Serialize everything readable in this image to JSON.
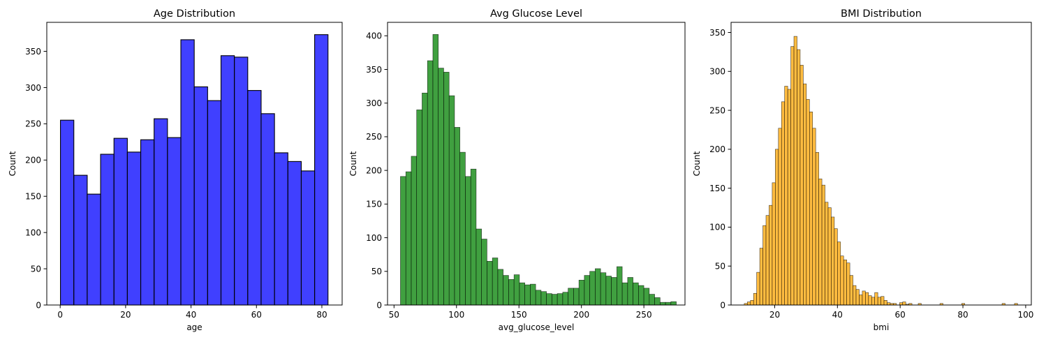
{
  "chart_data": [
    {
      "type": "histogram",
      "title": "Age Distribution",
      "xlabel": "age",
      "ylabel": "Count",
      "color": "#0000ff",
      "xlim": [
        -4.1,
        86.2
      ],
      "ylim": [
        0,
        390
      ],
      "xticks": [
        0,
        20,
        40,
        60,
        80
      ],
      "yticks": [
        0,
        50,
        100,
        150,
        200,
        250,
        300,
        350
      ],
      "bin_start": 0.08,
      "bin_width": 4.09,
      "values": [
        255,
        179,
        153,
        208,
        230,
        211,
        228,
        257,
        231,
        366,
        301,
        282,
        344,
        342,
        296,
        264,
        210,
        198,
        185,
        373
      ]
    },
    {
      "type": "histogram",
      "title": "Avg Glucose Level",
      "xlabel": "avg_glucose_level",
      "ylabel": "Count",
      "color": "#008000",
      "xlim": [
        44.8,
        282.9
      ],
      "ylim": [
        0,
        420
      ],
      "xticks": [
        50,
        100,
        150,
        200,
        250
      ],
      "yticks": [
        0,
        50,
        100,
        150,
        200,
        250,
        300,
        350,
        400
      ],
      "bin_start": 55.12,
      "bin_width": 4.33,
      "values": [
        191,
        198,
        221,
        290,
        315,
        363,
        402,
        352,
        346,
        311,
        264,
        227,
        191,
        202,
        113,
        98,
        65,
        70,
        53,
        44,
        38,
        45,
        33,
        30,
        31,
        22,
        20,
        17,
        16,
        17,
        19,
        25,
        25,
        37,
        44,
        50,
        54,
        48,
        43,
        41,
        57,
        33,
        41,
        33,
        29,
        25,
        16,
        11,
        4,
        4,
        5
      ]
    },
    {
      "type": "histogram",
      "title": "BMI Distribution",
      "xlabel": "bmi",
      "ylabel": "Count",
      "color": "#ffa500",
      "xlim": [
        6.1,
        101.8
      ],
      "ylim": [
        0,
        363
      ],
      "xticks": [
        20,
        40,
        60,
        80,
        100
      ],
      "yticks": [
        0,
        50,
        100,
        150,
        200,
        250,
        300,
        350
      ],
      "bin_start": 10.3,
      "bin_width": 0.99,
      "values": [
        2,
        4,
        6,
        15,
        42,
        73,
        102,
        115,
        128,
        157,
        200,
        227,
        261,
        281,
        277,
        332,
        345,
        328,
        308,
        284,
        264,
        248,
        227,
        196,
        162,
        154,
        132,
        125,
        113,
        98,
        81,
        63,
        58,
        54,
        38,
        25,
        20,
        13,
        18,
        16,
        12,
        10,
        16,
        10,
        11,
        6,
        3,
        2,
        2,
        0,
        3,
        4,
        1,
        2,
        0,
        0,
        2,
        0,
        0,
        0,
        0,
        0,
        0,
        2,
        0,
        0,
        0,
        0,
        0,
        0,
        2,
        0,
        0,
        0,
        0,
        0,
        0,
        0,
        0,
        0,
        0,
        0,
        0,
        2,
        0,
        0,
        0,
        2
      ]
    }
  ]
}
